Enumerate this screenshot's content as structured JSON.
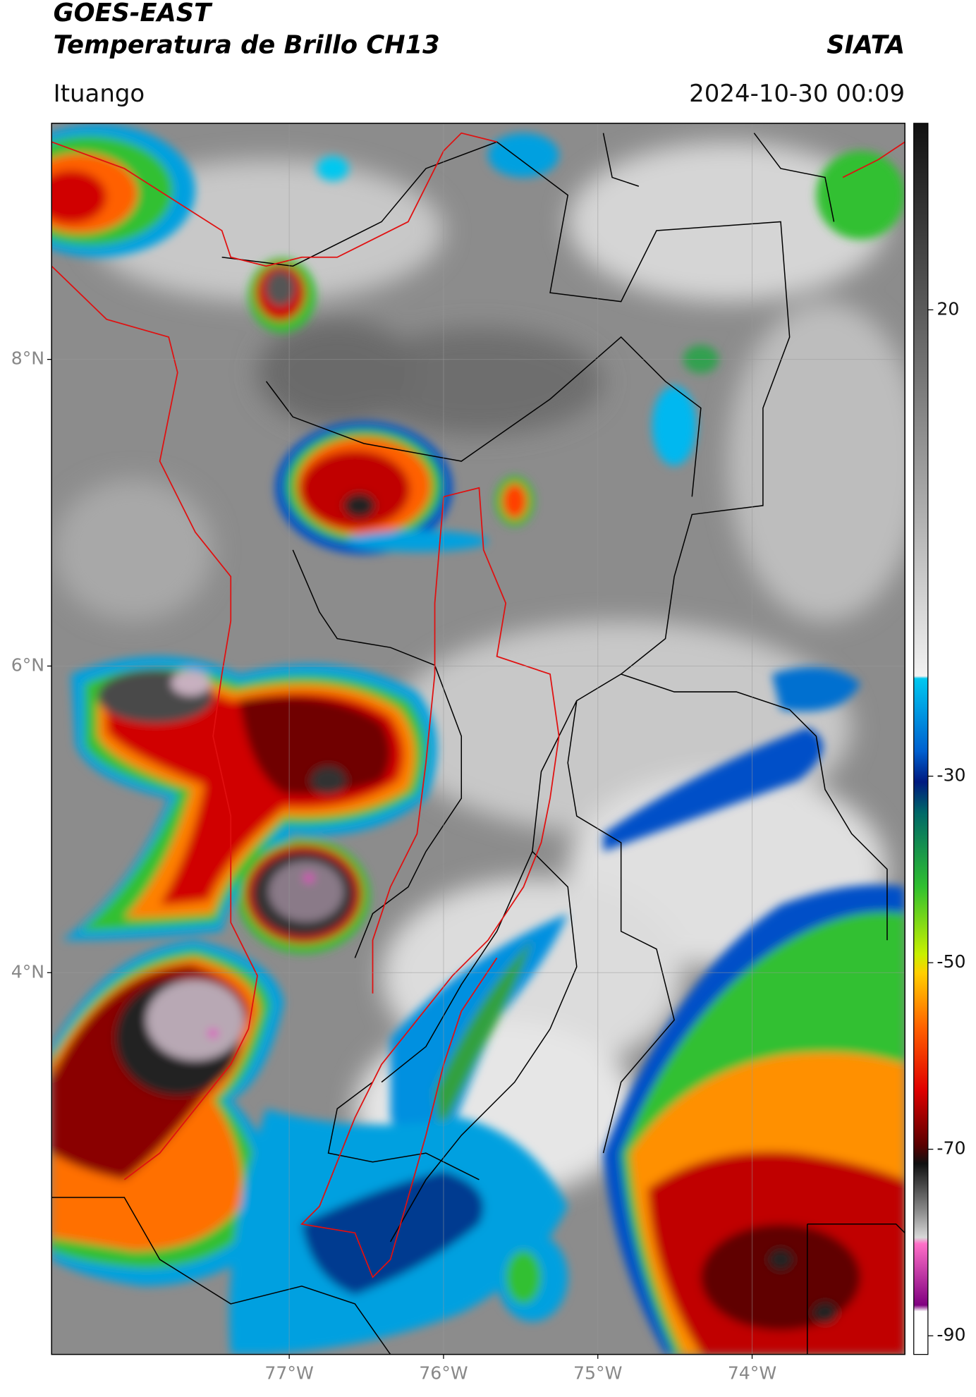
{
  "header": {
    "title": "GOES-EAST",
    "subtitle": "Temperatura de Brillo CH13",
    "agency": "SIATA",
    "region": "Ituango",
    "timestamp": "2024-10-30 00:09"
  },
  "map": {
    "lon_range": [
      -78.54,
      -73.01
    ],
    "lat_range": [
      1.51,
      9.54
    ],
    "lon_ticks": [
      {
        "value": -77,
        "label": "77°W"
      },
      {
        "value": -76,
        "label": "76°W"
      },
      {
        "value": -75,
        "label": "75°W"
      },
      {
        "value": -74,
        "label": "74°W"
      }
    ],
    "lat_ticks": [
      {
        "value": 8,
        "label": "8°N"
      },
      {
        "value": 6,
        "label": "6°N"
      },
      {
        "value": 4,
        "label": "4°N"
      }
    ]
  },
  "colorbar": {
    "range": [
      -92,
      40
    ],
    "ticks": [
      20,
      -30,
      -50,
      -70,
      -90
    ]
  }
}
